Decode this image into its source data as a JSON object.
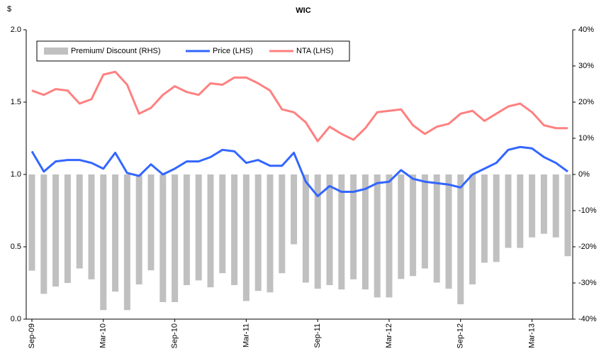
{
  "chart_data": {
    "type": "combo",
    "title": "WIC",
    "y_label": "$",
    "categories": [
      "Sep-09",
      null,
      null,
      null,
      null,
      null,
      "Mar-10",
      null,
      null,
      null,
      null,
      null,
      "Sep-10",
      null,
      null,
      null,
      null,
      null,
      "Mar-11",
      null,
      null,
      null,
      null,
      null,
      "Sep-11",
      null,
      null,
      null,
      null,
      null,
      "Mar-12",
      null,
      null,
      null,
      null,
      null,
      "Sep-12",
      null,
      null,
      null,
      null,
      null,
      "Mar-13",
      null,
      null,
      null
    ],
    "series": [
      {
        "name": "Premium/ Discount (RHS)",
        "type": "bar",
        "axis": "y2",
        "color": "#c0c0c0",
        "values": [
          -26.6,
          -33,
          -31,
          -30,
          -26,
          -29,
          -37.5,
          -32.4,
          -37.5,
          -30.4,
          -26.5,
          -35.3,
          -35.3,
          -30.6,
          -29.3,
          -31.2,
          -27.3,
          -30.6,
          -35,
          -32.2,
          -32.6,
          -27.3,
          -19.3,
          -29.9,
          -31.6,
          -30.6,
          -31.8,
          -29,
          -31.8,
          -34,
          -34,
          -28.9,
          -28.1,
          -26,
          -29.9,
          -31.6,
          -35.9,
          -30.4,
          -24.4,
          -24.2,
          -20.3,
          -20.3,
          -17.4,
          -16.4,
          -17.4,
          -22.6
        ]
      },
      {
        "name": "Price (LHS)",
        "type": "line",
        "color": "#3366ff",
        "values": [
          1.16,
          1.02,
          1.09,
          1.1,
          1.1,
          1.08,
          1.04,
          1.15,
          1.01,
          0.99,
          1.07,
          1.0,
          1.04,
          1.09,
          1.09,
          1.12,
          1.17,
          1.16,
          1.08,
          1.1,
          1.06,
          1.06,
          1.15,
          0.95,
          0.85,
          0.92,
          0.88,
          0.88,
          0.9,
          0.94,
          0.95,
          1.03,
          0.97,
          0.95,
          0.94,
          0.93,
          0.91,
          1.0,
          1.04,
          1.08,
          1.17,
          1.19,
          1.18,
          1.12,
          1.08,
          1.02
        ]
      },
      {
        "name": "NTA (LHS)",
        "type": "line",
        "color": "#ff8080",
        "values": [
          1.58,
          1.55,
          1.59,
          1.58,
          1.49,
          1.52,
          1.69,
          1.71,
          1.62,
          1.42,
          1.46,
          1.55,
          1.61,
          1.57,
          1.55,
          1.63,
          1.62,
          1.67,
          1.67,
          1.63,
          1.58,
          1.45,
          1.43,
          1.36,
          1.23,
          1.33,
          1.28,
          1.24,
          1.32,
          1.43,
          1.44,
          1.45,
          1.34,
          1.28,
          1.33,
          1.35,
          1.42,
          1.44,
          1.37,
          1.42,
          1.47,
          1.49,
          1.43,
          1.34,
          1.32,
          1.32
        ]
      }
    ],
    "ylim": [
      0,
      2
    ],
    "yticks": [
      {
        "value": 0,
        "label": "0.0"
      },
      0.5,
      {
        "value": 1,
        "label": "1.0"
      },
      1.5,
      {
        "value": 2,
        "label": "2.0"
      }
    ],
    "y2lim": [
      -40,
      40
    ],
    "y2ticks": [
      {
        "value": -40,
        "label": "-40%"
      },
      {
        "value": -30,
        "label": "-30%"
      },
      {
        "value": -20,
        "label": "-20%"
      },
      {
        "value": -10,
        "label": "-10%"
      },
      {
        "value": 0,
        "label": "0%"
      },
      {
        "value": 10,
        "label": "10%"
      },
      {
        "value": 20,
        "label": "20%"
      },
      {
        "value": 30,
        "label": "30%"
      },
      {
        "value": 40,
        "label": "40%"
      }
    ],
    "grid": false,
    "legend": "top-left"
  }
}
